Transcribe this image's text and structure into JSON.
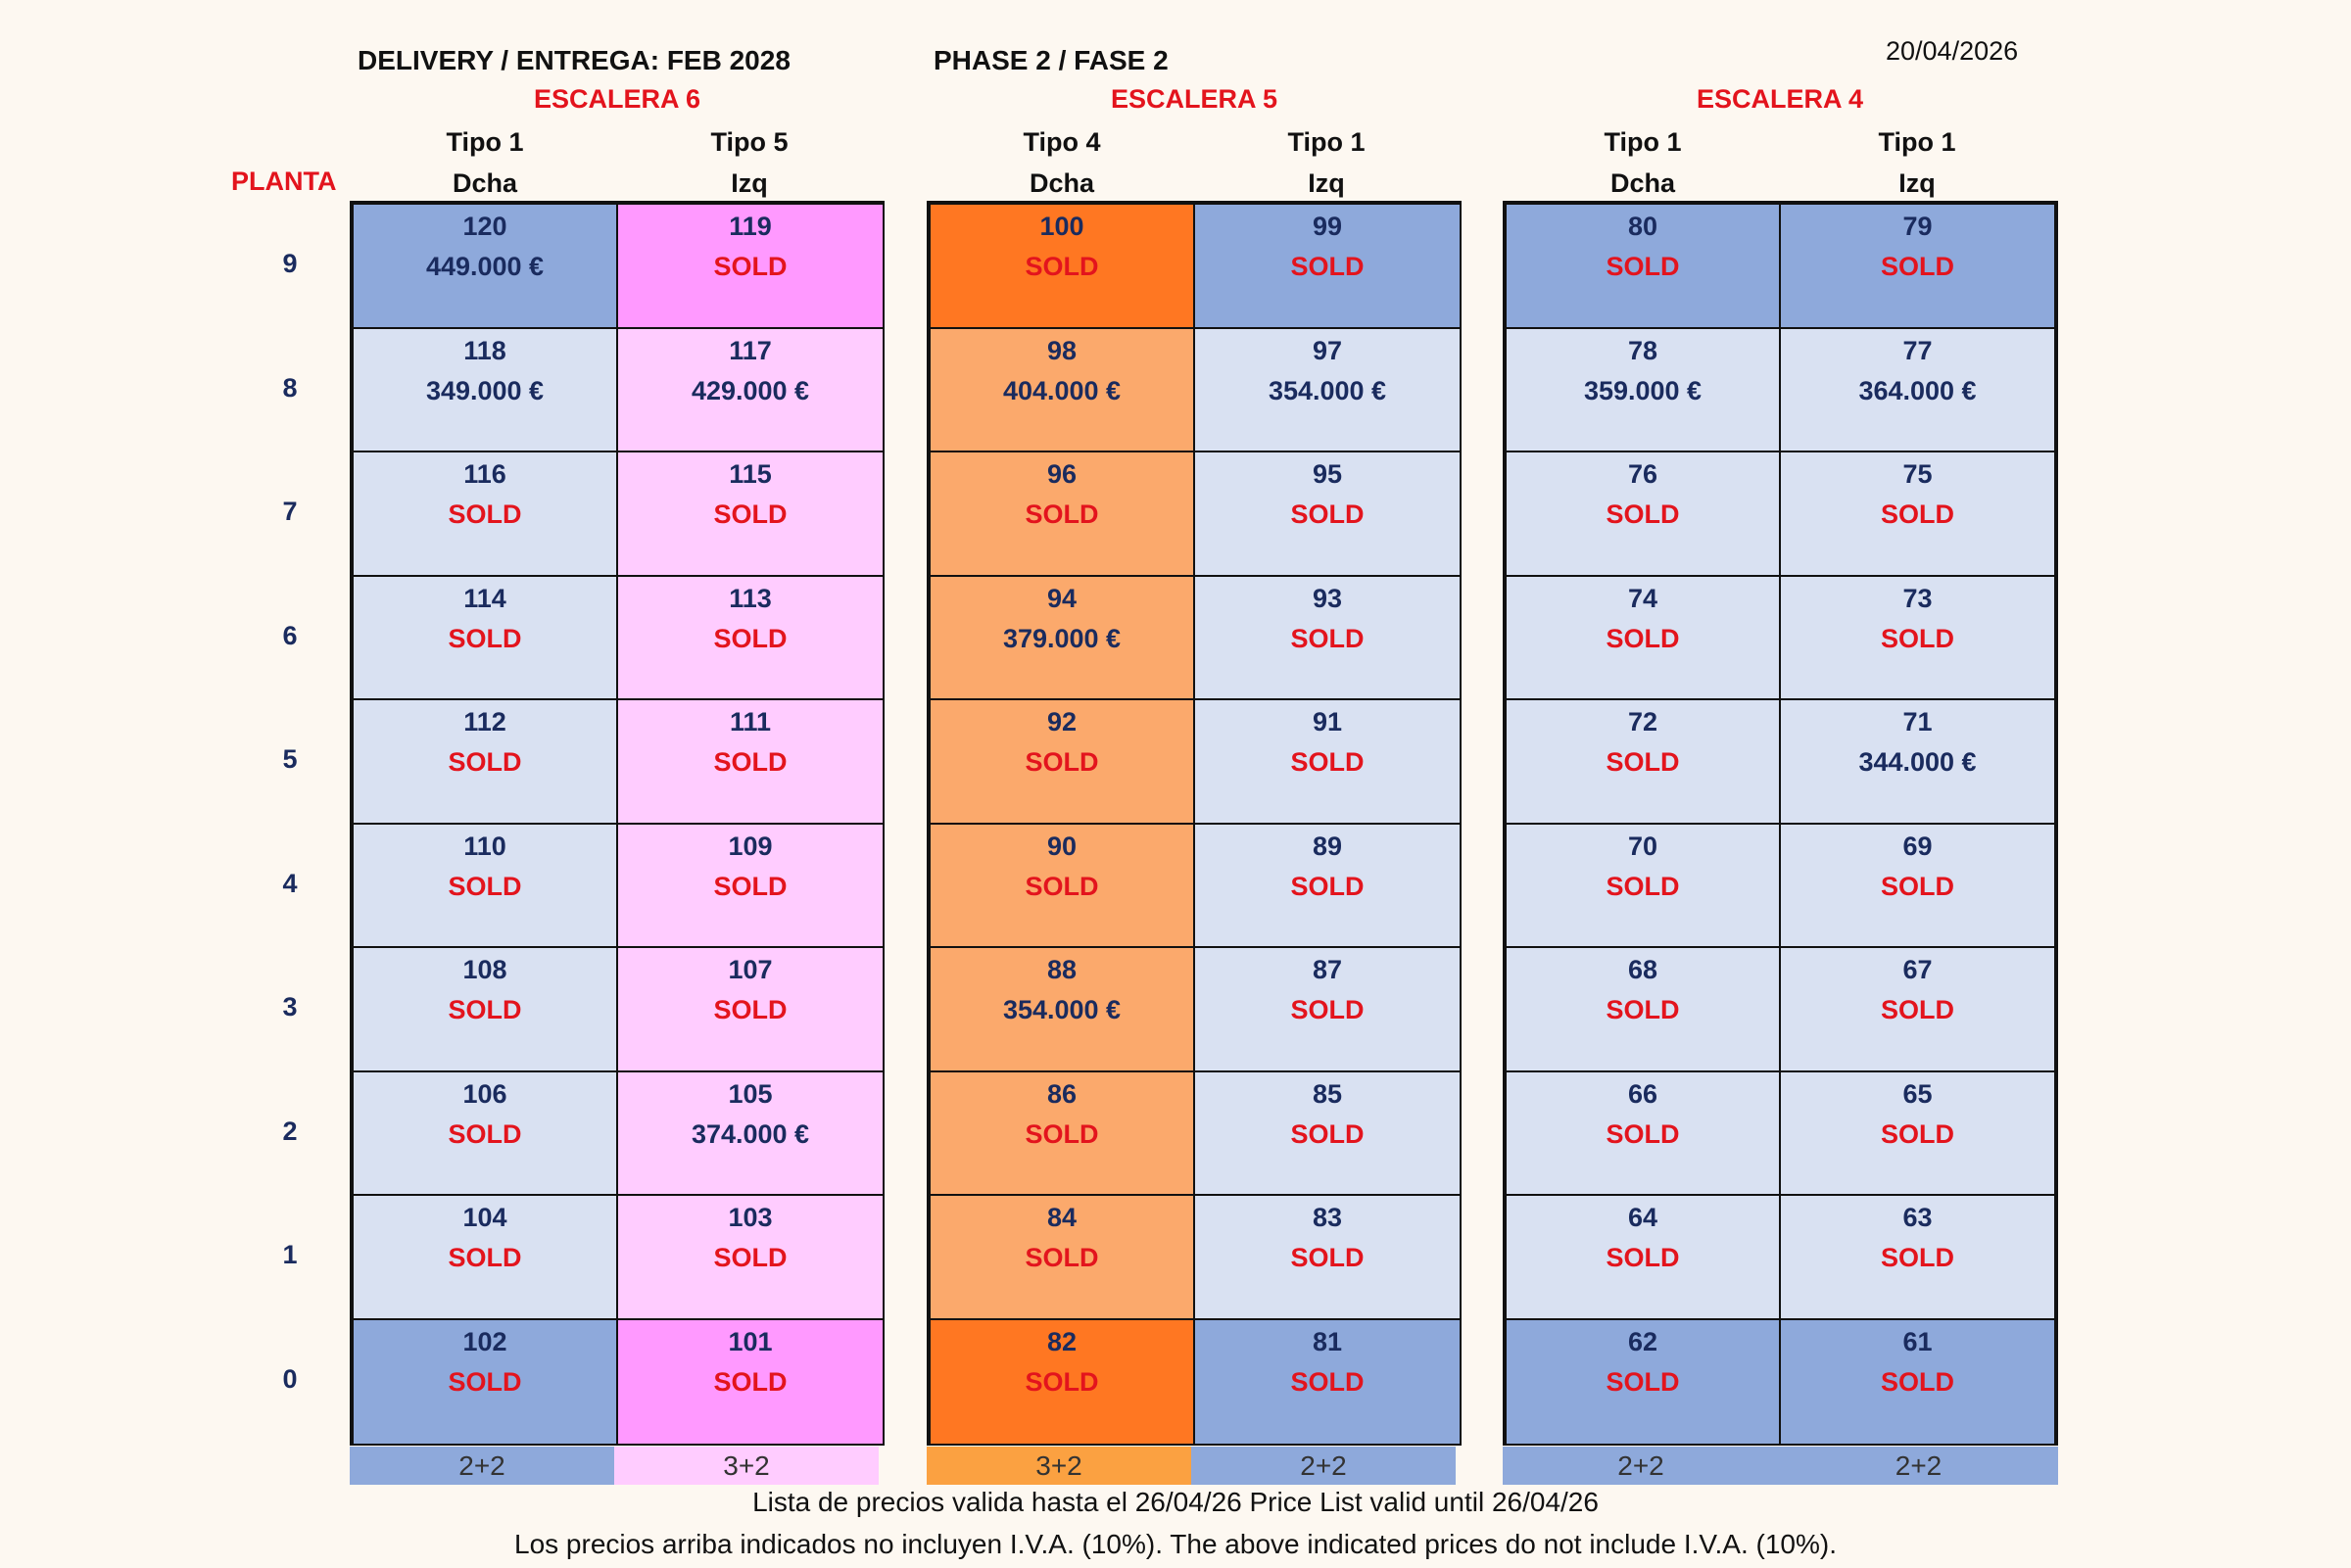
{
  "header": {
    "delivery": "DELIVERY / ENTREGA: FEB 2028",
    "phase": "PHASE 2 / FASE 2",
    "date": "20/04/2026",
    "planta_label": "PLANTA"
  },
  "floors": [
    "9",
    "8",
    "7",
    "6",
    "5",
    "4",
    "3",
    "2",
    "1",
    "0"
  ],
  "escaleras": [
    {
      "name": "ESCALERA 6",
      "columns": [
        {
          "tipo": "Tipo 1",
          "side": "Dcha"
        },
        {
          "tipo": "Tipo 5",
          "side": "Izq"
        }
      ],
      "rooms": [
        "2+2",
        "3+2"
      ],
      "units": [
        [
          {
            "num": "120",
            "status": "449.000 €"
          },
          {
            "num": "119",
            "status": "SOLD"
          }
        ],
        [
          {
            "num": "118",
            "status": "349.000 €"
          },
          {
            "num": "117",
            "status": "429.000 €"
          }
        ],
        [
          {
            "num": "116",
            "status": "SOLD"
          },
          {
            "num": "115",
            "status": "SOLD"
          }
        ],
        [
          {
            "num": "114",
            "status": "SOLD"
          },
          {
            "num": "113",
            "status": "SOLD"
          }
        ],
        [
          {
            "num": "112",
            "status": "SOLD"
          },
          {
            "num": "111",
            "status": "SOLD"
          }
        ],
        [
          {
            "num": "110",
            "status": "SOLD"
          },
          {
            "num": "109",
            "status": "SOLD"
          }
        ],
        [
          {
            "num": "108",
            "status": "SOLD"
          },
          {
            "num": "107",
            "status": "SOLD"
          }
        ],
        [
          {
            "num": "106",
            "status": "SOLD"
          },
          {
            "num": "105",
            "status": "374.000 €"
          }
        ],
        [
          {
            "num": "104",
            "status": "SOLD"
          },
          {
            "num": "103",
            "status": "SOLD"
          }
        ],
        [
          {
            "num": "102",
            "status": "SOLD"
          },
          {
            "num": "101",
            "status": "SOLD"
          }
        ]
      ]
    },
    {
      "name": "ESCALERA 5",
      "columns": [
        {
          "tipo": "Tipo 4",
          "side": "Dcha"
        },
        {
          "tipo": "Tipo 1",
          "side": "Izq"
        }
      ],
      "rooms": [
        "3+2",
        "2+2"
      ],
      "units": [
        [
          {
            "num": "100",
            "status": "SOLD"
          },
          {
            "num": "99",
            "status": "SOLD"
          }
        ],
        [
          {
            "num": "98",
            "status": "404.000 €"
          },
          {
            "num": "97",
            "status": "354.000 €"
          }
        ],
        [
          {
            "num": "96",
            "status": "SOLD"
          },
          {
            "num": "95",
            "status": "SOLD"
          }
        ],
        [
          {
            "num": "94",
            "status": "379.000 €"
          },
          {
            "num": "93",
            "status": "SOLD"
          }
        ],
        [
          {
            "num": "92",
            "status": "SOLD"
          },
          {
            "num": "91",
            "status": "SOLD"
          }
        ],
        [
          {
            "num": "90",
            "status": "SOLD"
          },
          {
            "num": "89",
            "status": "SOLD"
          }
        ],
        [
          {
            "num": "88",
            "status": "354.000 €"
          },
          {
            "num": "87",
            "status": "SOLD"
          }
        ],
        [
          {
            "num": "86",
            "status": "SOLD"
          },
          {
            "num": "85",
            "status": "SOLD"
          }
        ],
        [
          {
            "num": "84",
            "status": "SOLD"
          },
          {
            "num": "83",
            "status": "SOLD"
          }
        ],
        [
          {
            "num": "82",
            "status": "SOLD"
          },
          {
            "num": "81",
            "status": "SOLD"
          }
        ]
      ]
    },
    {
      "name": "ESCALERA 4",
      "columns": [
        {
          "tipo": "Tipo 1",
          "side": "Dcha"
        },
        {
          "tipo": "Tipo 1",
          "side": "Izq"
        }
      ],
      "rooms": [
        "2+2",
        "2+2"
      ],
      "units": [
        [
          {
            "num": "80",
            "status": "SOLD"
          },
          {
            "num": "79",
            "status": "SOLD"
          }
        ],
        [
          {
            "num": "78",
            "status": "359.000 €"
          },
          {
            "num": "77",
            "status": "364.000 €"
          }
        ],
        [
          {
            "num": "76",
            "status": "SOLD"
          },
          {
            "num": "75",
            "status": "SOLD"
          }
        ],
        [
          {
            "num": "74",
            "status": "SOLD"
          },
          {
            "num": "73",
            "status": "SOLD"
          }
        ],
        [
          {
            "num": "72",
            "status": "SOLD"
          },
          {
            "num": "71",
            "status": "344.000 €"
          }
        ],
        [
          {
            "num": "70",
            "status": "SOLD"
          },
          {
            "num": "69",
            "status": "SOLD"
          }
        ],
        [
          {
            "num": "68",
            "status": "SOLD"
          },
          {
            "num": "67",
            "status": "SOLD"
          }
        ],
        [
          {
            "num": "66",
            "status": "SOLD"
          },
          {
            "num": "65",
            "status": "SOLD"
          }
        ],
        [
          {
            "num": "64",
            "status": "SOLD"
          },
          {
            "num": "63",
            "status": "SOLD"
          }
        ],
        [
          {
            "num": "62",
            "status": "SOLD"
          },
          {
            "num": "61",
            "status": "SOLD"
          }
        ]
      ]
    }
  ],
  "footer": {
    "line1": "Lista de precios valida hasta el 26/04/26 Price List valid until 26/04/26",
    "line2": "Los precios arriba indicados no incluyen I.V.A. (10%). The above indicated prices do not include I.V.A. (10%)."
  },
  "colors": {
    "sold_text": "#e3141d",
    "price_text": "#1a2b5e",
    "tipo1_dark": "#8ea9db",
    "tipo1_light": "#d9e1f2",
    "tipo5_dark": "#ff99ff",
    "tipo5_light": "#ffccff",
    "tipo4_dark": "#ff7722",
    "tipo4_light": "#fba96c"
  }
}
